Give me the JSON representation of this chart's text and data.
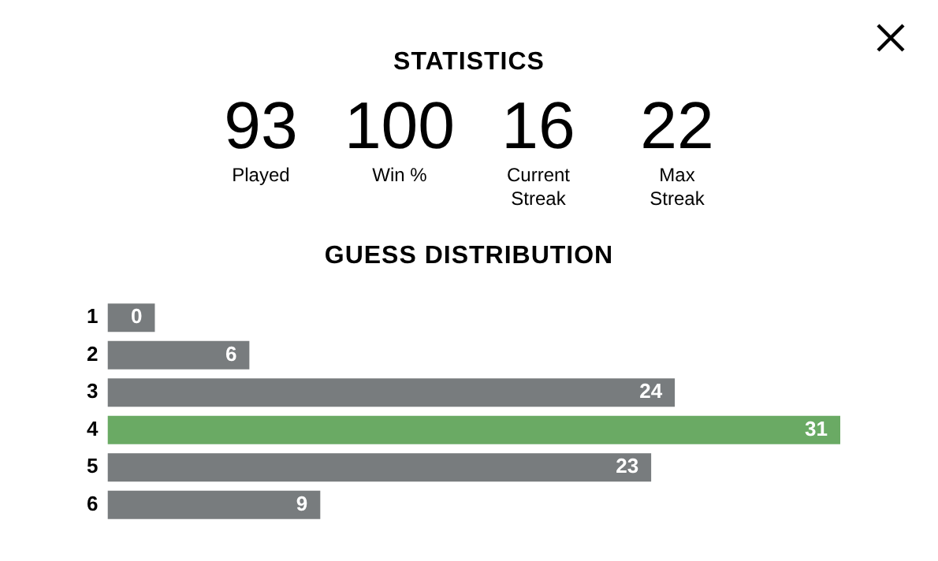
{
  "chart_data": [
    {
      "type": "other",
      "title": "STATISTICS",
      "annotations": [
        "93",
        "Played",
        "100",
        "Win %",
        "16",
        "Current\nStreak",
        "22",
        "Max\nStreak"
      ]
    },
    {
      "type": "bar",
      "title": "GUESS DISTRIBUTION",
      "orientation": "horizontal",
      "categories": [
        "1",
        "2",
        "3",
        "4",
        "5",
        "6"
      ],
      "values": [
        0,
        6,
        24,
        31,
        23,
        9
      ],
      "colors": [
        "#787c7e",
        "#787c7e",
        "#787c7e",
        "#6aaa64",
        "#787c7e",
        "#787c7e"
      ],
      "xlim": [
        0,
        31
      ],
      "data_labels": true,
      "grid": false,
      "legend": false,
      "tick_labels": "y"
    }
  ]
}
